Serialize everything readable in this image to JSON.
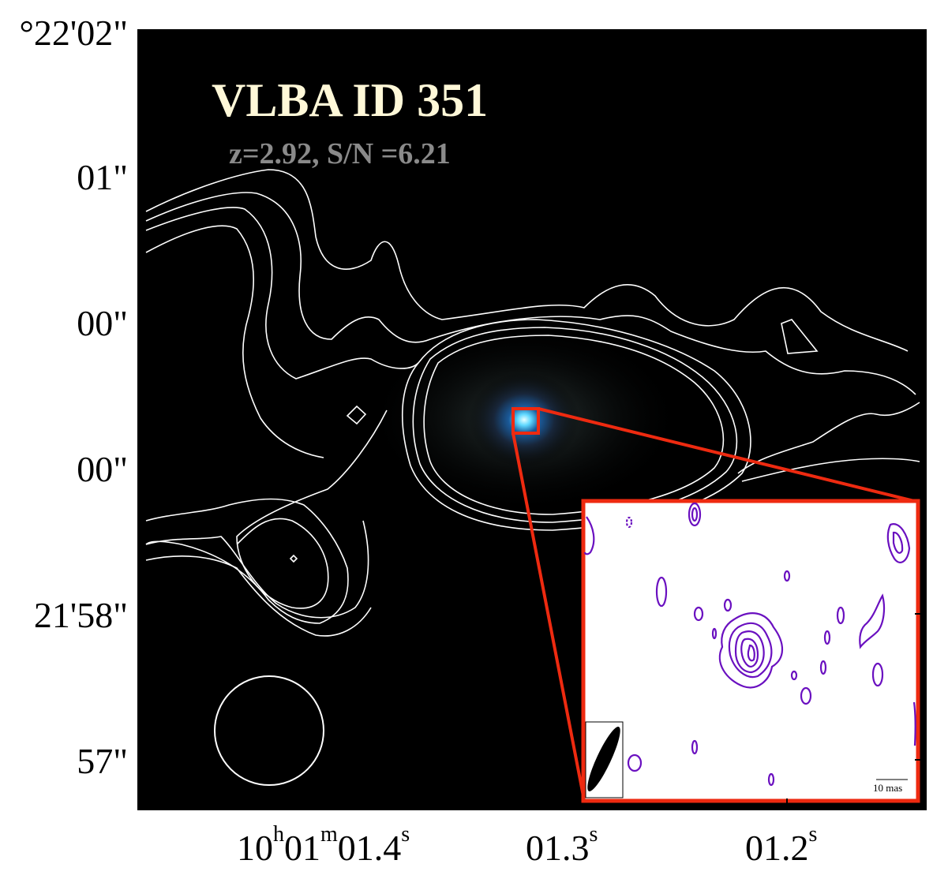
{
  "title": "VLBA ID  351",
  "subtitle": "z=2.92,  S/N =6.21",
  "dec_labels": [
    "°22'02\"",
    "01\"",
    "00\"",
    "00\"",
    "21'58\"",
    "57\""
  ],
  "ra_labels": [
    {
      "main_a": "10",
      "sup_a": "h",
      "main_b": "01",
      "sup_b": "m",
      "main_c": "01.4",
      "sup_c": "s"
    },
    {
      "main": "01.3",
      "sup": "s"
    },
    {
      "main": "01.2",
      "sup": "s"
    }
  ],
  "inset": {
    "scale_bar_label": "10 mas"
  },
  "colors": {
    "background": "#000000",
    "contour_main": "#ffffff",
    "zoom_box": "#ee2a10",
    "inset_contour": "#6a10c0",
    "title": "#fff8d8",
    "subtitle": "#8a8a8a"
  }
}
